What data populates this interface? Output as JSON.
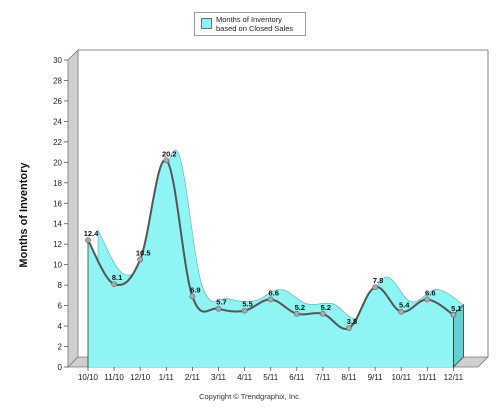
{
  "legend": {
    "label": "Months of Inventory based on Closed Sales",
    "swatch_color": "#8ef4f4"
  },
  "footer": {
    "copyright": "Copyright © Trendgraphix, Inc."
  },
  "colors": {
    "fill": "#8ef4f4",
    "line": "#555555",
    "marker": "#aaaaaa",
    "axis_wall": "#cfcfcf",
    "side_fill": "#5fd3d3"
  },
  "chart_data": {
    "type": "area",
    "title": "",
    "xlabel": "",
    "ylabel": "Months of Inventory",
    "ylim": [
      0,
      30
    ],
    "yticks": [
      0,
      2,
      4,
      6,
      8,
      10,
      12,
      14,
      16,
      18,
      20,
      22,
      24,
      26,
      28,
      30
    ],
    "grid": false,
    "legend_position": "top-center",
    "categories": [
      "10/10",
      "11/10",
      "12/10",
      "1/11",
      "2/11",
      "3/11",
      "4/11",
      "5/11",
      "6/11",
      "7/11",
      "8/11",
      "9/11",
      "10/11",
      "11/11",
      "12/11"
    ],
    "series": [
      {
        "name": "Months of Inventory based on Closed Sales",
        "values": [
          12.4,
          8.1,
          10.5,
          20.2,
          6.9,
          5.7,
          5.5,
          6.6,
          5.2,
          5.2,
          3.8,
          7.8,
          5.4,
          6.6,
          5.1
        ],
        "labels": [
          "12.4",
          "8.1",
          "10.5",
          "20.2",
          "6.9",
          "5.7",
          "5.5",
          "6.6",
          "5.2",
          "5.2",
          "3.8",
          "7.8",
          "5.4",
          "6.6",
          "5.1"
        ]
      }
    ]
  }
}
